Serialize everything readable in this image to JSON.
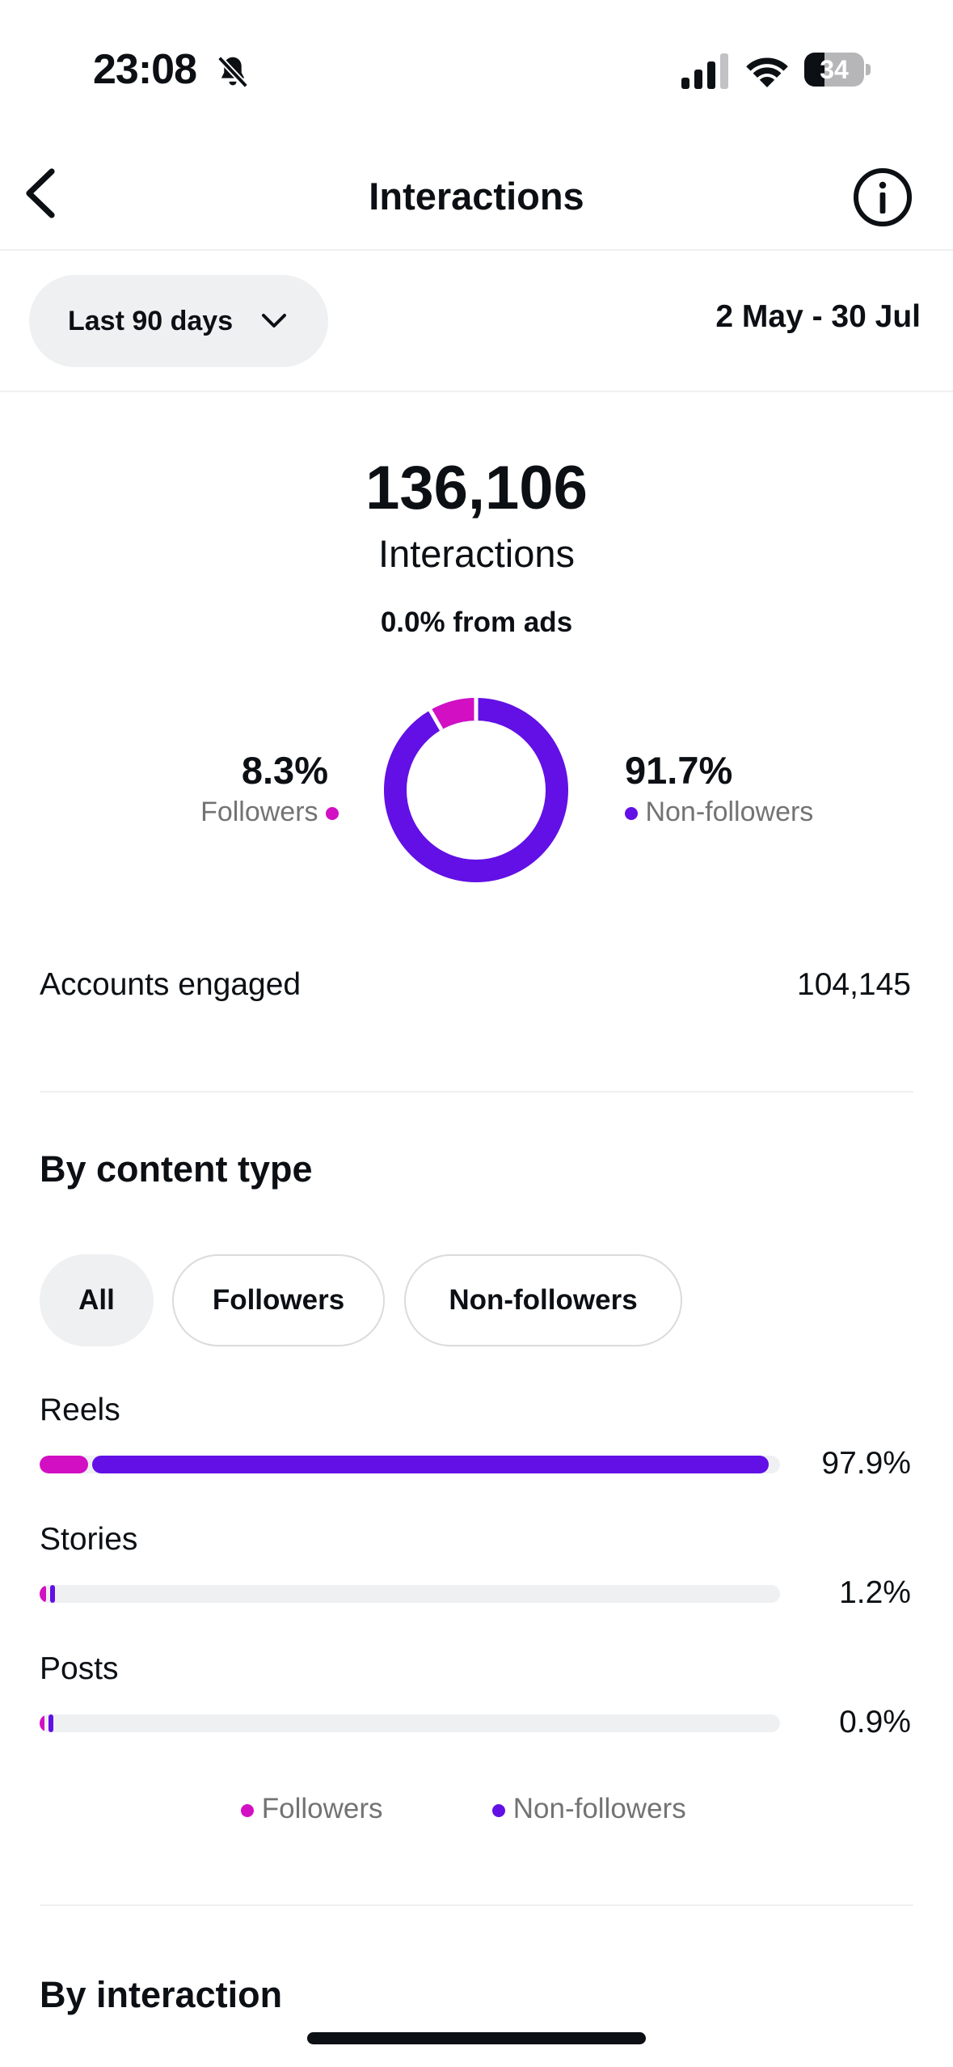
{
  "status_bar": {
    "time": "23:08",
    "battery": "34",
    "battery_level": 0.34,
    "icons": [
      "bell-slash-icon",
      "signal-icon",
      "wifi-icon",
      "battery-icon"
    ]
  },
  "header": {
    "title": "Interactions",
    "back_icon": "chevron-left-icon",
    "info_icon": "info-icon"
  },
  "filter": {
    "period": "Last 90 days",
    "date_range": "2 May - 30 Jul"
  },
  "summary": {
    "total": "136,106",
    "label": "Interactions",
    "ads_note": "0.0% from ads",
    "followers_pct": "8.3%",
    "followers_label": "Followers",
    "nonfollowers_pct": "91.7%",
    "nonfollowers_label": "Non-followers",
    "followers_share": 0.083,
    "nonfollowers_share": 0.917
  },
  "accounts_engaged": {
    "label": "Accounts engaged",
    "value": "104,145"
  },
  "content_type": {
    "title": "By content type",
    "chips": [
      "All",
      "Followers",
      "Non-followers"
    ],
    "selected_chip": "All",
    "rows": [
      {
        "label": "Reels",
        "pct": "97.9%",
        "followers_share": 0.066,
        "nonfollowers_share": 0.913
      },
      {
        "label": "Stories",
        "pct": "1.2%",
        "followers_share": 0.009,
        "nonfollowers_share": 0.003
      },
      {
        "label": "Posts",
        "pct": "0.9%",
        "followers_share": 0.003,
        "nonfollowers_share": 0.006
      }
    ],
    "legend": [
      "Followers",
      "Non-followers"
    ]
  },
  "next_section": {
    "title": "By interaction"
  },
  "colors": {
    "followers": "#d20fc3",
    "nonfollowers": "#6210e5",
    "track": "#eff0f2",
    "text": "#0c1014",
    "muted": "#737373"
  }
}
